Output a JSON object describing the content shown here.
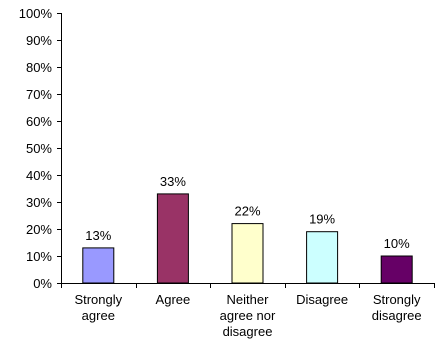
{
  "chart_data": {
    "type": "bar",
    "categories": [
      [
        "Strongly",
        "agree"
      ],
      [
        "Agree"
      ],
      [
        "Neither",
        "agree nor",
        "disagree"
      ],
      [
        "Disagree"
      ],
      [
        "Strongly",
        "disagree"
      ]
    ],
    "values": [
      13,
      33,
      22,
      19,
      10
    ],
    "data_labels": [
      "13%",
      "33%",
      "22%",
      "19%",
      "10%"
    ],
    "colors": [
      "#9999ff",
      "#993366",
      "#ffffcc",
      "#ccffff",
      "#660066"
    ],
    "ylim": [
      0,
      100
    ],
    "yticks": [
      "0%",
      "10%",
      "20%",
      "30%",
      "40%",
      "50%",
      "60%",
      "70%",
      "80%",
      "90%",
      "100%"
    ],
    "title": "",
    "xlabel": "",
    "ylabel": "",
    "grid": false,
    "legend": "none"
  }
}
